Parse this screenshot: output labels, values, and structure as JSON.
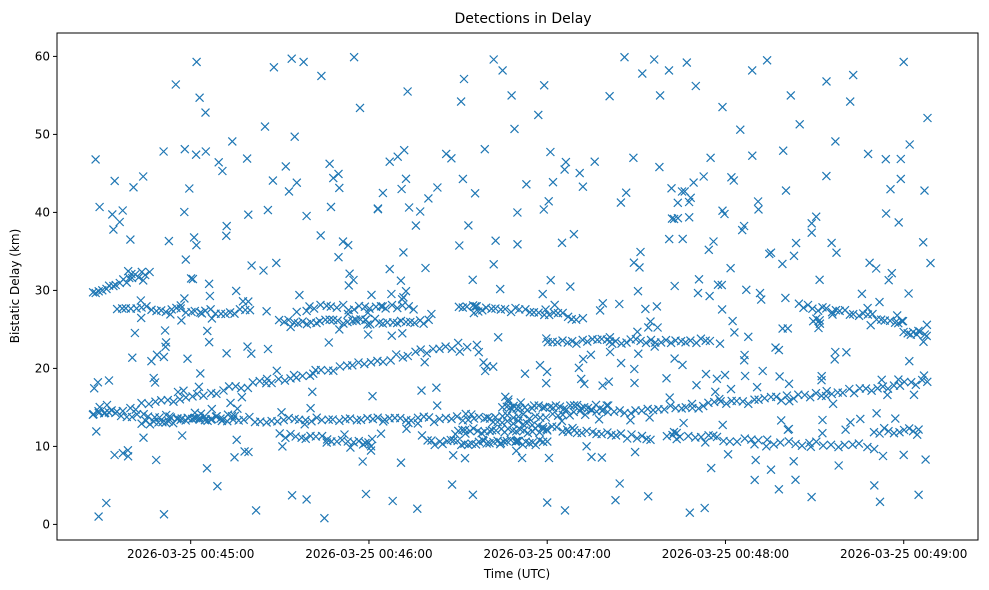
{
  "chart_data": {
    "type": "scatter",
    "title": "Detections in Delay",
    "xlabel": "Time (UTC)",
    "ylabel": "Bistatic Delay (km)",
    "marker": "x",
    "color": "#1f77b4",
    "grid": false,
    "x_axis": {
      "type": "time",
      "range": [
        "2026-03-25 00:44:15",
        "2026-03-25 00:49:25"
      ],
      "ticks": [
        "2026-03-25 00:45:00",
        "2026-03-25 00:46:00",
        "2026-03-25 00:47:00",
        "2026-03-25 00:48:00",
        "2026-03-25 00:49:00"
      ]
    },
    "y_axis": {
      "range": [
        -2,
        63
      ],
      "ticks": [
        0,
        10,
        20,
        30,
        40,
        50,
        60
      ]
    },
    "tracks": [
      {
        "x_start": "2026-03-25 00:44:27",
        "x_end": "2026-03-25 00:49:08",
        "y_start": 14.2,
        "y_mid": 11.3,
        "y_end": 18.3,
        "points": 150
      },
      {
        "x_start": "2026-03-25 00:44:27",
        "x_end": "2026-03-25 00:46:30",
        "y_start": 14.0,
        "y_mid": 18.5,
        "y_end": 23.0,
        "points": 60
      },
      {
        "x_start": "2026-03-25 00:44:27",
        "x_end": "2026-03-25 00:44:46",
        "y_start": 29.5,
        "y_mid": 31.0,
        "y_end": 32.5,
        "points": 18
      },
      {
        "x_start": "2026-03-25 00:44:35",
        "x_end": "2026-03-25 00:45:20",
        "y_start": 27.8,
        "y_mid": 27.5,
        "y_end": 27.2,
        "points": 28
      },
      {
        "x_start": "2026-03-25 00:45:30",
        "x_end": "2026-03-25 00:46:20",
        "y_start": 26.0,
        "y_mid": 26.0,
        "y_end": 26.0,
        "points": 34
      },
      {
        "x_start": "2026-03-25 00:45:40",
        "x_end": "2026-03-25 00:46:15",
        "y_start": 27.8,
        "y_mid": 27.8,
        "y_end": 27.8,
        "points": 20
      },
      {
        "x_start": "2026-03-25 00:46:30",
        "x_end": "2026-03-25 00:47:10",
        "y_start": 27.8,
        "y_mid": 27.8,
        "y_end": 26.5,
        "points": 26
      },
      {
        "x_start": "2026-03-25 00:47:00",
        "x_end": "2026-03-25 00:47:55",
        "y_start": 23.5,
        "y_mid": 23.5,
        "y_end": 23.5,
        "points": 34
      },
      {
        "x_start": "2026-03-25 00:48:25",
        "x_end": "2026-03-25 00:49:00",
        "y_start": 28.0,
        "y_mid": 27.2,
        "y_end": 26.0,
        "points": 24
      },
      {
        "x_start": "2026-03-25 00:49:00",
        "x_end": "2026-03-25 00:49:08",
        "y_start": 24.5,
        "y_mid": 24.5,
        "y_end": 24.5,
        "points": 8
      },
      {
        "x_start": "2026-03-25 00:44:45",
        "x_end": "2026-03-25 00:45:15",
        "y_start": 13.0,
        "y_mid": 13.5,
        "y_end": 13.8,
        "points": 24
      },
      {
        "x_start": "2026-03-25 00:45:30",
        "x_end": "2026-03-25 00:46:00",
        "y_start": 11.5,
        "y_mid": 11.0,
        "y_end": 10.5,
        "points": 18
      },
      {
        "x_start": "2026-03-25 00:46:20",
        "x_end": "2026-03-25 00:47:00",
        "y_start": 10.5,
        "y_mid": 10.5,
        "y_end": 10.5,
        "points": 34
      },
      {
        "x_start": "2026-03-25 00:46:30",
        "x_end": "2026-03-25 00:47:00",
        "y_start": 12.0,
        "y_mid": 12.0,
        "y_end": 12.0,
        "points": 24
      },
      {
        "x_start": "2026-03-25 00:46:45",
        "x_end": "2026-03-25 00:47:20",
        "y_start": 15.0,
        "y_mid": 15.0,
        "y_end": 15.0,
        "points": 30
      },
      {
        "x_start": "2026-03-25 00:46:40",
        "x_end": "2026-03-25 00:47:35",
        "y_start": 13.5,
        "y_mid": 12.0,
        "y_end": 11.0,
        "points": 34
      },
      {
        "x_start": "2026-03-25 00:47:40",
        "x_end": "2026-03-25 00:48:50",
        "y_start": 11.5,
        "y_mid": 10.5,
        "y_end": 10.0,
        "points": 30
      },
      {
        "x_start": "2026-03-25 00:48:50",
        "x_end": "2026-03-25 00:49:05",
        "y_start": 12.0,
        "y_mid": 12.0,
        "y_end": 12.0,
        "points": 10
      }
    ],
    "scattered_points": [
      [
        "2026-03-25 00:44:28",
        46.8
      ],
      [
        "2026-03-25 00:44:29",
        1.0
      ],
      [
        "2026-03-25 00:44:34",
        37.8
      ],
      [
        "2026-03-25 00:44:44",
        44.6
      ],
      [
        "2026-03-25 00:44:51",
        1.3
      ],
      [
        "2026-03-25 00:44:55",
        56.4
      ],
      [
        "2026-03-25 00:44:58",
        48.1
      ],
      [
        "2026-03-25 00:45:02",
        59.3
      ],
      [
        "2026-03-25 00:45:03",
        54.7
      ],
      [
        "2026-03-25 00:45:05",
        52.8
      ],
      [
        "2026-03-25 00:45:09",
        4.9
      ],
      [
        "2026-03-25 00:45:12",
        37.0
      ],
      [
        "2026-03-25 00:45:14",
        49.1
      ],
      [
        "2026-03-25 00:45:19",
        46.9
      ],
      [
        "2026-03-25 00:45:22",
        1.8
      ],
      [
        "2026-03-25 00:45:25",
        51.0
      ],
      [
        "2026-03-25 00:45:26",
        40.3
      ],
      [
        "2026-03-25 00:45:28",
        58.6
      ],
      [
        "2026-03-25 00:45:32",
        45.9
      ],
      [
        "2026-03-25 00:45:34",
        59.7
      ],
      [
        "2026-03-25 00:45:35",
        49.7
      ],
      [
        "2026-03-25 00:45:38",
        59.3
      ],
      [
        "2026-03-25 00:45:39",
        3.2
      ],
      [
        "2026-03-25 00:45:44",
        57.5
      ],
      [
        "2026-03-25 00:45:45",
        0.8
      ],
      [
        "2026-03-25 00:45:48",
        44.4
      ],
      [
        "2026-03-25 00:45:53",
        35.8
      ],
      [
        "2026-03-25 00:45:55",
        59.9
      ],
      [
        "2026-03-25 00:45:57",
        53.4
      ],
      [
        "2026-03-25 00:45:59",
        3.9
      ],
      [
        "2026-03-25 00:46:03",
        40.5
      ],
      [
        "2026-03-25 00:46:07",
        46.5
      ],
      [
        "2026-03-25 00:46:08",
        3.0
      ],
      [
        "2026-03-25 00:46:11",
        43.0
      ],
      [
        "2026-03-25 00:46:13",
        55.5
      ],
      [
        "2026-03-25 00:46:20",
        41.8
      ],
      [
        "2026-03-25 00:46:26",
        47.5
      ],
      [
        "2026-03-25 00:46:28",
        5.1
      ],
      [
        "2026-03-25 00:46:31",
        54.2
      ],
      [
        "2026-03-25 00:46:32",
        57.1
      ],
      [
        "2026-03-25 00:46:35",
        3.8
      ],
      [
        "2026-03-25 00:46:39",
        48.1
      ],
      [
        "2026-03-25 00:46:42",
        59.6
      ],
      [
        "2026-03-25 00:46:45",
        58.2
      ],
      [
        "2026-03-25 00:46:48",
        55.0
      ],
      [
        "2026-03-25 00:46:49",
        50.7
      ],
      [
        "2026-03-25 00:46:53",
        43.6
      ],
      [
        "2026-03-25 00:46:57",
        52.5
      ],
      [
        "2026-03-25 00:46:59",
        56.3
      ],
      [
        "2026-03-25 00:47:00",
        2.8
      ],
      [
        "2026-03-25 00:47:06",
        1.8
      ],
      [
        "2026-03-25 00:47:09",
        37.2
      ],
      [
        "2026-03-25 00:47:12",
        43.3
      ],
      [
        "2026-03-25 00:47:16",
        46.5
      ],
      [
        "2026-03-25 00:47:21",
        54.9
      ],
      [
        "2026-03-25 00:47:23",
        3.1
      ],
      [
        "2026-03-25 00:47:26",
        59.9
      ],
      [
        "2026-03-25 00:47:29",
        47.0
      ],
      [
        "2026-03-25 00:47:32",
        57.8
      ],
      [
        "2026-03-25 00:47:34",
        3.6
      ],
      [
        "2026-03-25 00:47:36",
        59.6
      ],
      [
        "2026-03-25 00:47:38",
        55.0
      ],
      [
        "2026-03-25 00:47:41",
        58.2
      ],
      [
        "2026-03-25 00:47:42",
        39.2
      ],
      [
        "2026-03-25 00:47:47",
        59.2
      ],
      [
        "2026-03-25 00:47:48",
        1.5
      ],
      [
        "2026-03-25 00:47:50",
        56.2
      ],
      [
        "2026-03-25 00:47:53",
        2.1
      ],
      [
        "2026-03-25 00:47:55",
        47.0
      ],
      [
        "2026-03-25 00:47:59",
        53.5
      ],
      [
        "2026-03-25 00:48:02",
        44.5
      ],
      [
        "2026-03-25 00:48:05",
        50.6
      ],
      [
        "2026-03-25 00:48:09",
        58.2
      ],
      [
        "2026-03-25 00:48:11",
        41.4
      ],
      [
        "2026-03-25 00:48:14",
        59.5
      ],
      [
        "2026-03-25 00:48:18",
        4.5
      ],
      [
        "2026-03-25 00:48:22",
        55.0
      ],
      [
        "2026-03-25 00:48:25",
        51.3
      ],
      [
        "2026-03-25 00:48:29",
        3.5
      ],
      [
        "2026-03-25 00:48:34",
        56.8
      ],
      [
        "2026-03-25 00:48:37",
        49.1
      ],
      [
        "2026-03-25 00:48:42",
        54.2
      ],
      [
        "2026-03-25 00:48:43",
        57.6
      ],
      [
        "2026-03-25 00:48:48",
        47.5
      ],
      [
        "2026-03-25 00:48:52",
        2.9
      ],
      [
        "2026-03-25 00:48:56",
        32.2
      ],
      [
        "2026-03-25 00:48:59",
        44.3
      ],
      [
        "2026-03-25 00:49:00",
        59.3
      ],
      [
        "2026-03-25 00:49:02",
        48.7
      ],
      [
        "2026-03-25 00:49:05",
        3.8
      ],
      [
        "2026-03-25 00:49:07",
        42.8
      ],
      [
        "2026-03-25 00:49:08",
        52.1
      ],
      [
        "2026-03-25 00:49:09",
        33.5
      ]
    ],
    "noise_points": 420
  }
}
